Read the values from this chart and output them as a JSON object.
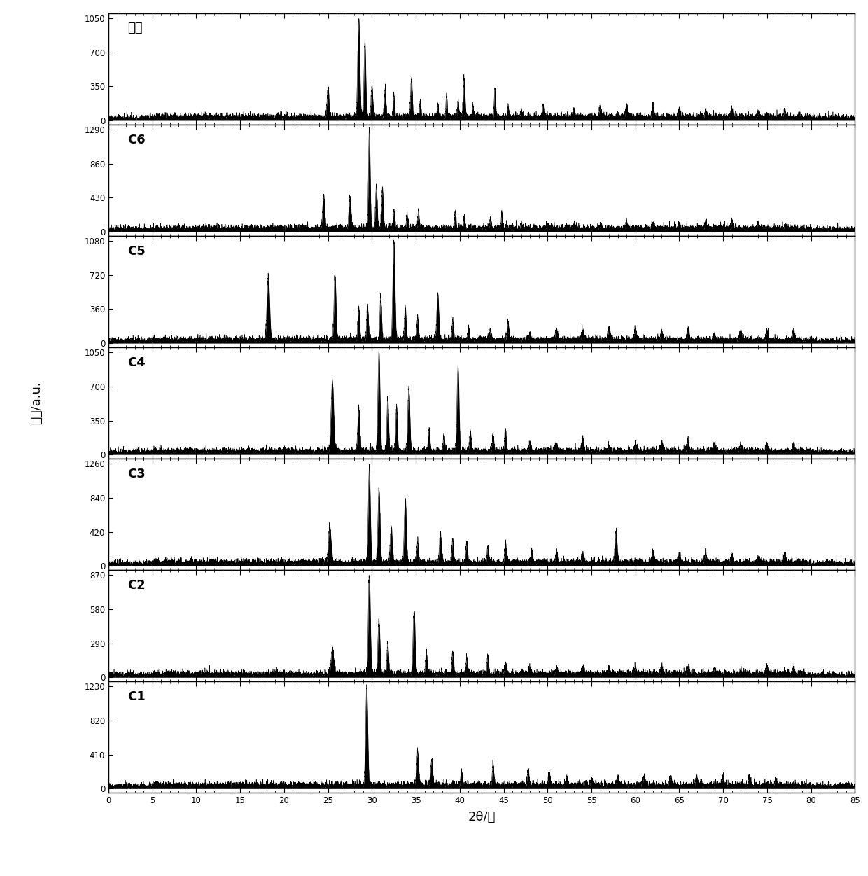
{
  "panels": [
    {
      "label": "空白",
      "ymax": 1050,
      "yticks": [
        0,
        350,
        700,
        1050
      ]
    },
    {
      "label": "C6",
      "ymax": 1290,
      "yticks": [
        0,
        430,
        860,
        1290
      ]
    },
    {
      "label": "C5",
      "ymax": 1080,
      "yticks": [
        0,
        360,
        720,
        1080
      ]
    },
    {
      "label": "C4",
      "ymax": 1050,
      "yticks": [
        0,
        350,
        700,
        1050
      ]
    },
    {
      "label": "C3",
      "ymax": 1260,
      "yticks": [
        0,
        420,
        840,
        1260
      ]
    },
    {
      "label": "C2",
      "ymax": 870,
      "yticks": [
        0,
        290,
        580,
        870
      ]
    },
    {
      "label": "C1",
      "ymax": 1230,
      "yticks": [
        0,
        410,
        820,
        1230
      ]
    }
  ],
  "xmin": 0,
  "xmax": 85,
  "xticks": [
    0,
    5,
    10,
    15,
    20,
    25,
    30,
    35,
    40,
    45,
    50,
    55,
    60,
    65,
    70,
    75,
    80,
    85
  ],
  "xlabel": "2θ/度",
  "ylabel": "强度/a.u.",
  "line_color": "black",
  "bg_color": "white",
  "noise_seed": 42,
  "figsize": [
    12.4,
    12.51
  ],
  "dpi": 100
}
